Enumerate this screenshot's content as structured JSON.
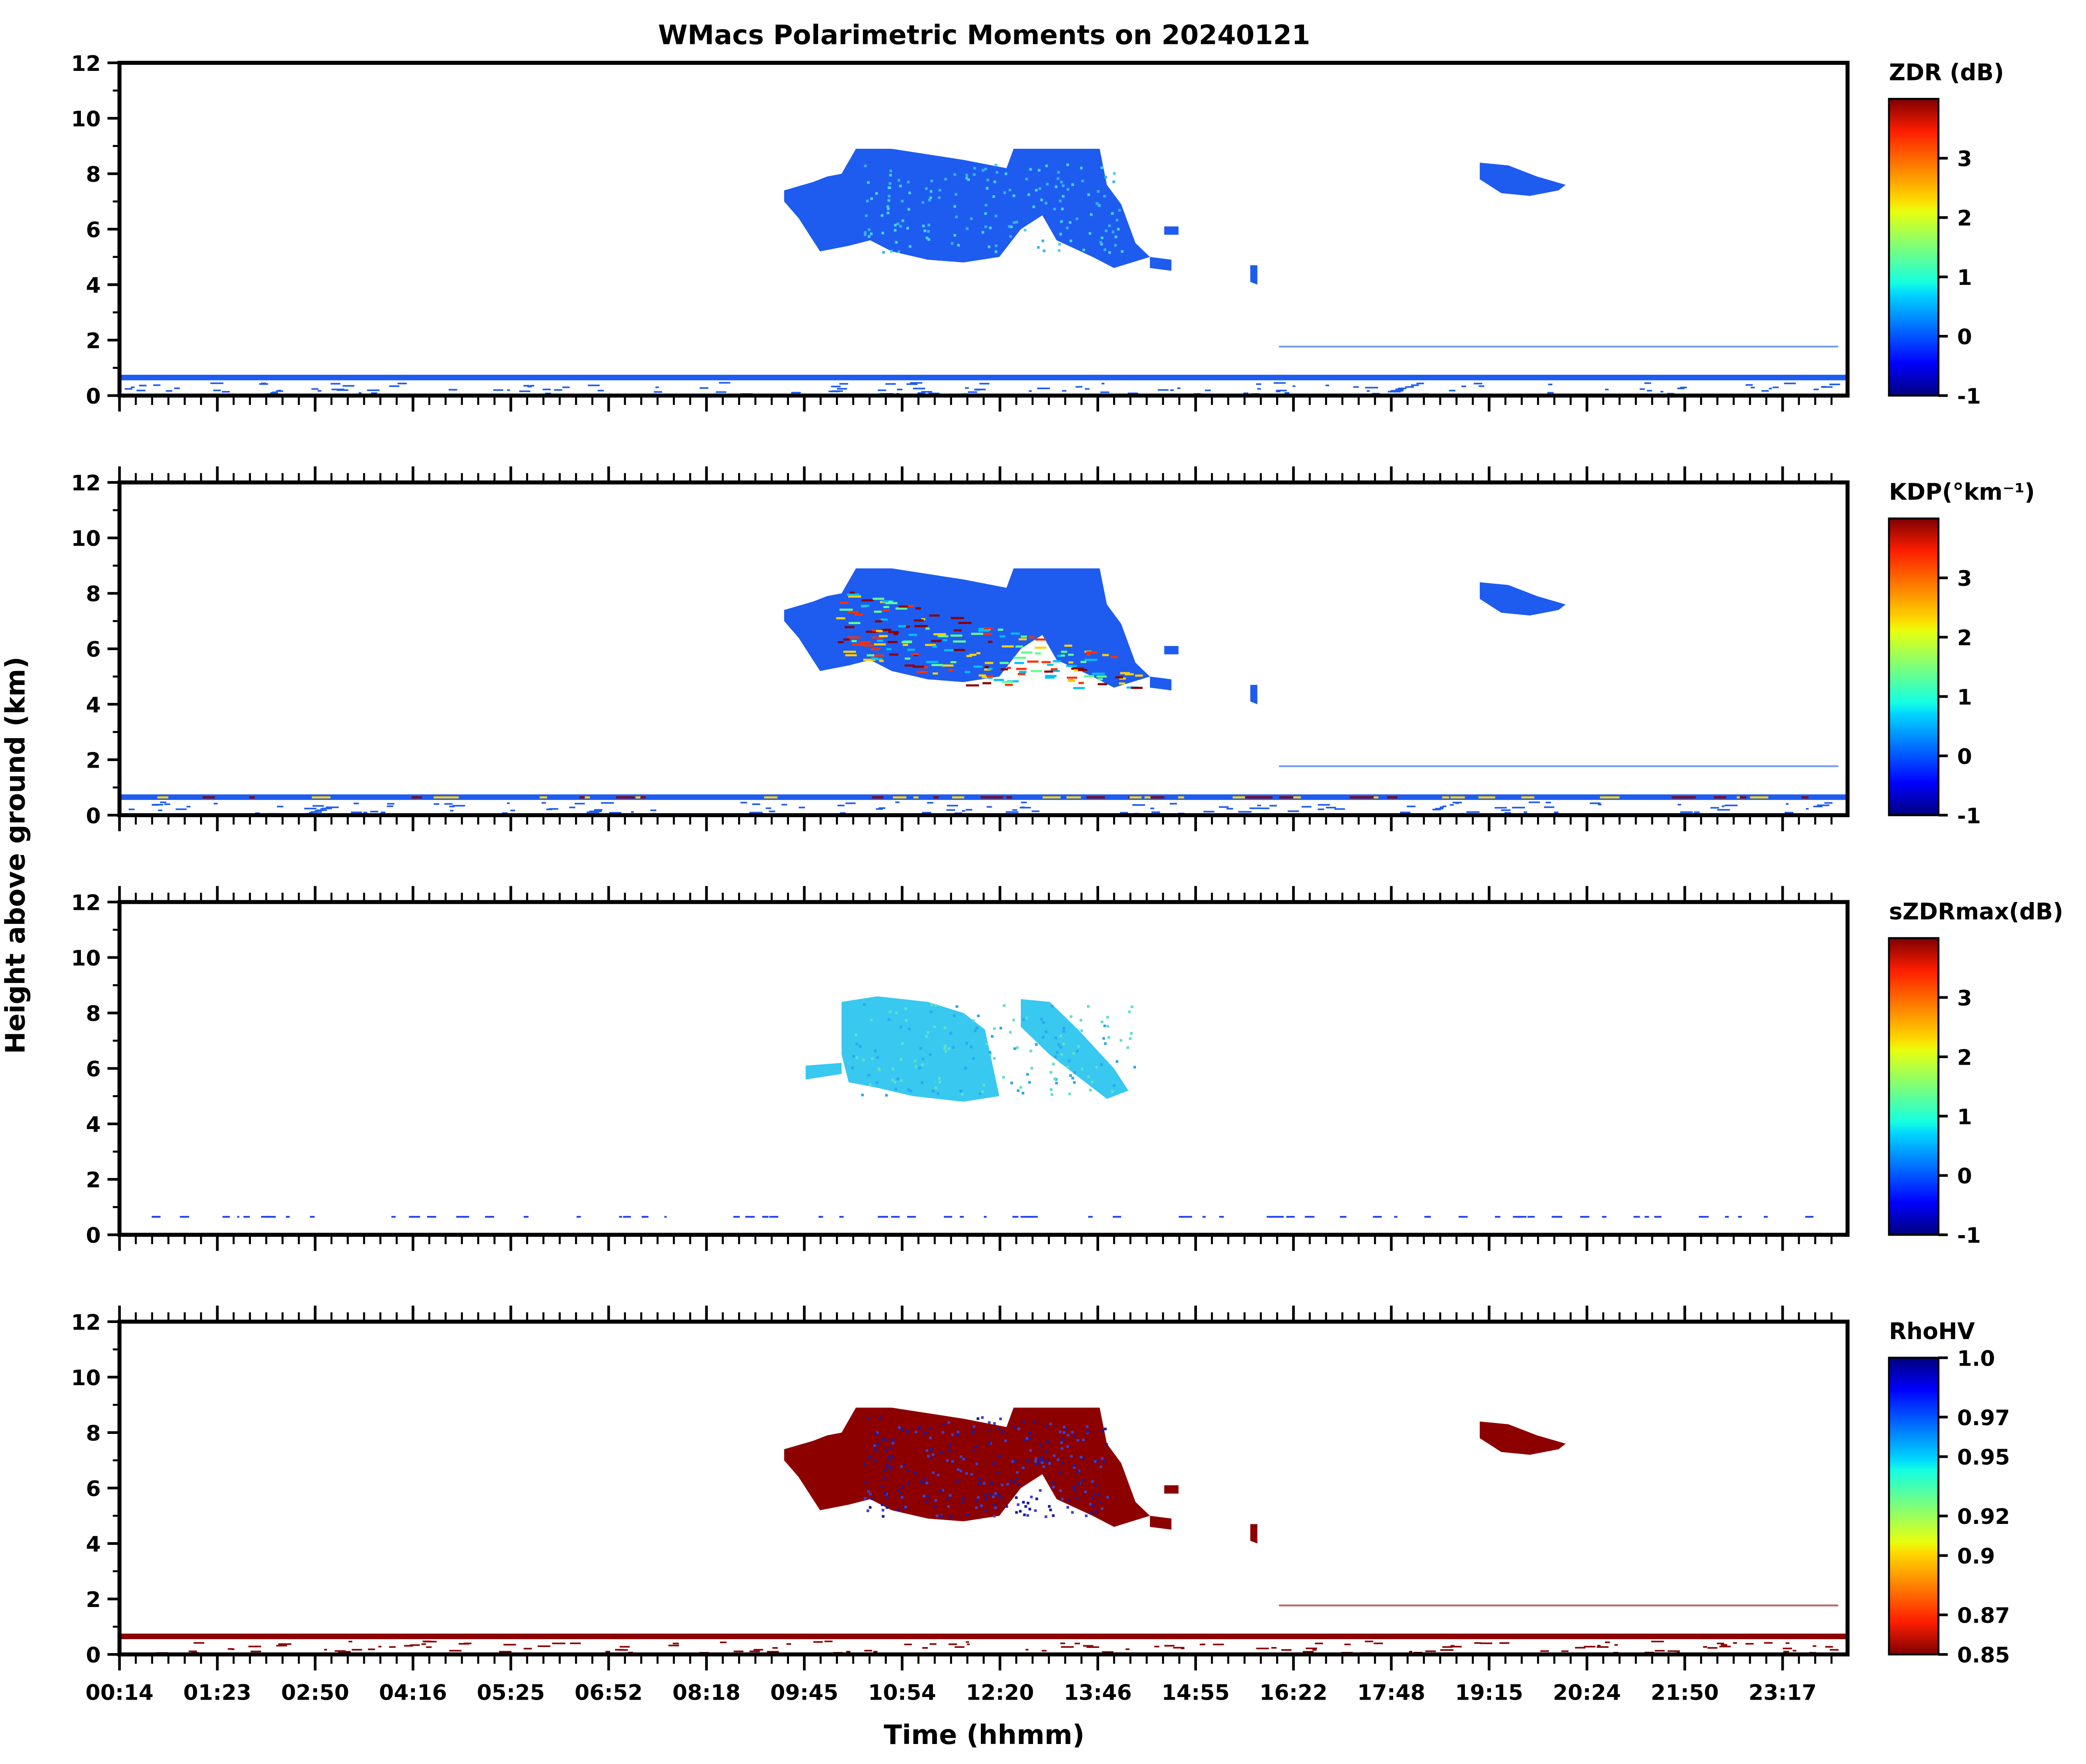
{
  "figure": {
    "title": "WMacs Polarimetric Moments on 20240121",
    "xlabel": "Time (hhmm)",
    "ylabel": "Height above ground (km)"
  },
  "chart_data": [
    {
      "type": "heatmap",
      "variable": "ZDR",
      "colorbar_label": "ZDR (dB)",
      "colorbar_ticks": [
        "-1",
        "0",
        "1",
        "2",
        "3"
      ],
      "colorbar_range": [
        -1,
        4
      ],
      "ylim": [
        0,
        12
      ],
      "y_ticks": [
        "0",
        "2",
        "4",
        "6",
        "8",
        "10",
        "12"
      ],
      "x_tick_labels": [],
      "dominant_color": "#1e5cf0",
      "features": [
        {
          "t": [
            9.5,
            16.2
          ],
          "z": [
            4.5,
            9.0
          ],
          "desc": "upper cloud, ZDR ~ -0.3 to 0.5"
        },
        {
          "t": [
            19.2,
            20.4
          ],
          "z": [
            7.1,
            8.5
          ],
          "desc": "small cloud, ZDR ~ -0.3"
        },
        {
          "t": [
            0.2,
            24.0
          ],
          "z": [
            0.0,
            0.7
          ],
          "desc": "near-surface layer, ZDR ~ -0.5"
        }
      ]
    },
    {
      "type": "heatmap",
      "variable": "KDP",
      "colorbar_label": "KDP(°km⁻¹)",
      "colorbar_ticks": [
        "-1",
        "0",
        "1",
        "2",
        "3"
      ],
      "colorbar_range": [
        -1,
        4
      ],
      "ylim": [
        0,
        12
      ],
      "y_ticks": [
        "0",
        "2",
        "4",
        "6",
        "8",
        "10",
        "12"
      ],
      "x_tick_labels": [],
      "dominant_color": "#1e5cf0",
      "features": [
        {
          "t": [
            9.5,
            16.2
          ],
          "z": [
            4.0,
            9.0
          ],
          "desc": "upper cloud, mostly ~ -0.3 with high-KDP streaks"
        },
        {
          "t": [
            19.2,
            20.4
          ],
          "z": [
            7.1,
            8.5
          ],
          "desc": "small cloud, KDP ~ -0.3"
        },
        {
          "t": [
            0.2,
            24.0
          ],
          "z": [
            0.0,
            0.7
          ],
          "desc": "near-surface layer, mixed values"
        }
      ]
    },
    {
      "type": "heatmap",
      "variable": "sZDRmax",
      "colorbar_label": "sZDRmax(dB)",
      "colorbar_ticks": [
        "-1",
        "0",
        "1",
        "2",
        "3"
      ],
      "colorbar_range": [
        -1,
        4
      ],
      "ylim": [
        0,
        12
      ],
      "y_ticks": [
        "0",
        "2",
        "4",
        "6",
        "8",
        "10",
        "12"
      ],
      "x_tick_labels": [],
      "dominant_color": "#38c8f0",
      "features": [
        {
          "t": [
            10.3,
            14.4
          ],
          "z": [
            4.7,
            8.5
          ],
          "desc": "upper cloud, sZDRmax ~ 0.5 to 1"
        },
        {
          "t": [
            0.2,
            24.0
          ],
          "z": [
            0.6,
            0.7
          ],
          "desc": "sparse near-surface pixels"
        }
      ]
    },
    {
      "type": "heatmap",
      "variable": "RhoHV",
      "colorbar_label": "RhoHV",
      "colorbar_ticks": [
        "0.85",
        "0.87",
        "0.9",
        "0.92",
        "0.95",
        "0.97",
        "1.0"
      ],
      "colorbar_range": [
        0.85,
        1.0
      ],
      "ylim": [
        0,
        12
      ],
      "y_ticks": [
        "0",
        "2",
        "4",
        "6",
        "8",
        "10",
        "12"
      ],
      "x_tick_labels": [
        "00:14",
        "01:23",
        "02:50",
        "04:16",
        "05:25",
        "06:52",
        "08:18",
        "09:45",
        "10:54",
        "12:20",
        "13:46",
        "14:55",
        "16:22",
        "17:48",
        "19:15",
        "20:24",
        "21:50",
        "23:17"
      ],
      "dominant_color": "#8c0000",
      "features": [
        {
          "t": [
            9.5,
            16.2
          ],
          "z": [
            4.0,
            9.0
          ],
          "desc": "upper cloud, RhoHV ~ 0.85 with higher values inside"
        },
        {
          "t": [
            19.2,
            20.4
          ],
          "z": [
            7.1,
            8.5
          ],
          "desc": "small cloud, RhoHV ~ 0.85"
        },
        {
          "t": [
            0.2,
            24.0
          ],
          "z": [
            0.0,
            0.7
          ],
          "desc": "near-surface layer, RhoHV ~ 0.85"
        }
      ]
    }
  ]
}
